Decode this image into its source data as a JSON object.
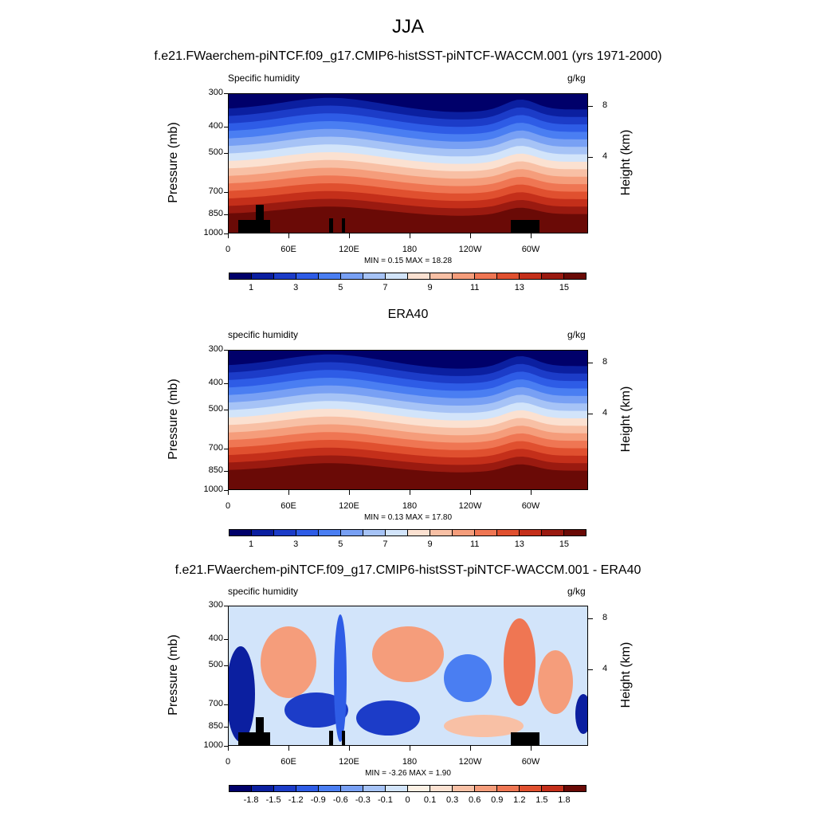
{
  "title": "JJA",
  "panels": [
    {
      "heading": "f.e21.FWaerchem-piNTCF.f09_g17.CMIP6-histSST-piNTCF-WACCM.001 (yrs 1971-2000)",
      "left_label": "Specific humidity",
      "right_label": "g/kg",
      "stats": "MIN =   0.15  MAX =  18.28",
      "colorbar_labels": [
        "1",
        "3",
        "5",
        "7",
        "9",
        "11",
        "13",
        "15"
      ]
    },
    {
      "heading": "ERA40",
      "left_label": "specific humidity",
      "right_label": "g/kg",
      "stats": "MIN =   0.13  MAX =  17.80",
      "colorbar_labels": [
        "1",
        "3",
        "5",
        "7",
        "9",
        "11",
        "13",
        "15"
      ]
    },
    {
      "heading": "f.e21.FWaerchem-piNTCF.f09_g17.CMIP6-histSST-piNTCF-WACCM.001 - ERA40",
      "left_label": "specific humidity",
      "right_label": "g/kg",
      "stats": "MIN =  -3.26  MAX =   1.90",
      "colorbar_labels": [
        "-1.8",
        "-1.5",
        "-1.2",
        "-0.9",
        "-0.6",
        "-0.3",
        "-0.1",
        "0",
        "0.1",
        "0.3",
        "0.6",
        "0.9",
        "1.2",
        "1.5",
        "1.8"
      ]
    }
  ],
  "axes": {
    "ylabel": "Pressure (mb)",
    "y2label": "Height (km)",
    "pressure_ticks": [
      "300",
      "400",
      "500",
      "700",
      "850",
      "1000"
    ],
    "height_ticks": [
      "8",
      "4"
    ],
    "x_ticks": [
      "0",
      "60E",
      "120E",
      "180",
      "120W",
      "60W"
    ]
  },
  "colors": {
    "abs_scale": [
      "#00006a",
      "#0b1fa0",
      "#1c3cc8",
      "#2e5ce6",
      "#4a7ef2",
      "#78a0f4",
      "#a6c3f6",
      "#d2e4fa",
      "#fbe1d1",
      "#f8c0a5",
      "#f59d7b",
      "#ef7653",
      "#e0502f",
      "#c42f1a",
      "#9a1a10",
      "#6a0a06"
    ],
    "diff_scale": [
      "#00006a",
      "#0b1fa0",
      "#1c3cc8",
      "#2e5ce6",
      "#4a7ef2",
      "#78a0f4",
      "#a6c3f6",
      "#d2e4fa",
      "#fbf0e4",
      "#fbe1d1",
      "#f8c0a5",
      "#f59d7b",
      "#ef7653",
      "#e0502f",
      "#c42f1a",
      "#6a0a06"
    ],
    "topography": "#000000"
  },
  "chart_data": [
    {
      "type": "heatmap",
      "title": "f.e21.FWaerchem-piNTCF.f09_g17.CMIP6-histSST-piNTCF-WACCM.001 (yrs 1971-2000)",
      "variable": "Specific humidity",
      "units": "g/kg",
      "xlabel": "",
      "ylabel": "Pressure (mb)",
      "y2label": "Height (km)",
      "y_scale": "log",
      "ylim": [
        1000,
        300
      ],
      "x_ticks": [
        "0",
        "60E",
        "120E",
        "180",
        "120W",
        "60W"
      ],
      "min": 0.15,
      "max": 18.28,
      "levels": [
        1,
        2,
        3,
        4,
        5,
        6,
        7,
        8,
        9,
        10,
        11,
        12,
        13,
        14,
        15
      ]
    },
    {
      "type": "heatmap",
      "title": "ERA40",
      "variable": "specific humidity",
      "units": "g/kg",
      "xlabel": "",
      "ylabel": "Pressure (mb)",
      "y2label": "Height (km)",
      "y_scale": "log",
      "ylim": [
        1000,
        300
      ],
      "x_ticks": [
        "0",
        "60E",
        "120E",
        "180",
        "120W",
        "60W"
      ],
      "min": 0.13,
      "max": 17.8,
      "levels": [
        1,
        2,
        3,
        4,
        5,
        6,
        7,
        8,
        9,
        10,
        11,
        12,
        13,
        14,
        15
      ]
    },
    {
      "type": "heatmap",
      "title": "f.e21.FWaerchem-piNTCF.f09_g17.CMIP6-histSST-piNTCF-WACCM.001 - ERA40",
      "variable": "specific humidity",
      "units": "g/kg",
      "xlabel": "",
      "ylabel": "Pressure (mb)",
      "y2label": "Height (km)",
      "y_scale": "log",
      "ylim": [
        1000,
        300
      ],
      "x_ticks": [
        "0",
        "60E",
        "120E",
        "180",
        "120W",
        "60W"
      ],
      "min": -3.26,
      "max": 1.9,
      "levels": [
        -1.8,
        -1.5,
        -1.2,
        -0.9,
        -0.6,
        -0.3,
        -0.1,
        0,
        0.1,
        0.3,
        0.6,
        0.9,
        1.2,
        1.5,
        1.8
      ]
    }
  ]
}
